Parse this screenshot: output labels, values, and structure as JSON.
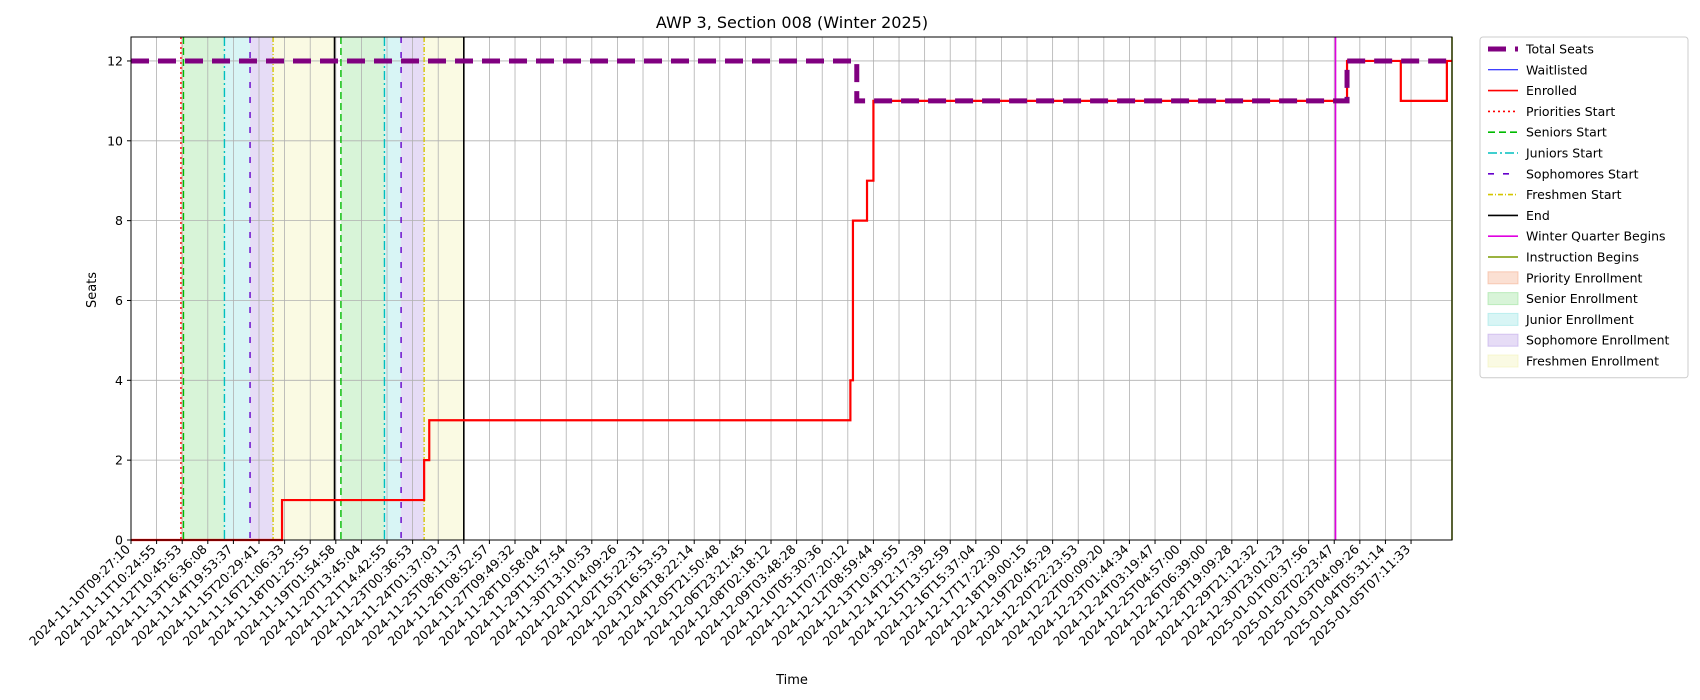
{
  "chart_data": {
    "type": "line",
    "title": "AWP 3, Section 008 (Winter 2025)",
    "xlabel": "Time",
    "ylabel": "Seats",
    "ylim": [
      0,
      12.6
    ],
    "yticks": [
      0,
      2,
      4,
      6,
      8,
      10,
      12
    ],
    "grid": true,
    "legend_position": "outside-right",
    "x_ticks": [
      "2024-11-10T09:27:10",
      "2024-11-11T10:24:55",
      "2024-11-12T10:45:53",
      "2024-11-13T16:36:08",
      "2024-11-14T19:53:37",
      "2024-11-15T20:29:41",
      "2024-11-16T21:06:33",
      "2024-11-18T01:25:55",
      "2024-11-19T01:54:58",
      "2024-11-20T13:45:04",
      "2024-11-21T14:42:55",
      "2024-11-23T00:36:53",
      "2024-11-24T01:37:03",
      "2024-11-25T08:11:37",
      "2024-11-26T08:52:57",
      "2024-11-27T09:49:32",
      "2024-11-28T10:58:04",
      "2024-11-29T11:57:54",
      "2024-11-30T13:10:53",
      "2024-12-01T14:09:26",
      "2024-12-02T15:22:31",
      "2024-12-03T16:53:53",
      "2024-12-04T18:22:14",
      "2024-12-05T21:50:48",
      "2024-12-06T23:21:45",
      "2024-12-08T02:18:12",
      "2024-12-09T03:48:28",
      "2024-12-10T05:30:36",
      "2024-12-11T07:20:12",
      "2024-12-12T08:59:44",
      "2024-12-13T10:39:55",
      "2024-12-14T12:17:39",
      "2024-12-15T13:52:59",
      "2024-12-16T15:37:04",
      "2024-12-17T17:22:30",
      "2024-12-18T19:00:15",
      "2024-12-19T20:45:29",
      "2024-12-20T22:23:53",
      "2024-12-22T00:09:20",
      "2024-12-23T01:44:34",
      "2024-12-24T03:19:47",
      "2024-12-25T04:57:00",
      "2024-12-26T06:39:00",
      "2024-12-28T19:09:28",
      "2024-12-29T21:12:32",
      "2024-12-30T23:01:23",
      "2025-01-01T00:37:56",
      "2025-01-02T02:23:47",
      "2025-01-03T04:09:26",
      "2025-01-04T05:31:14",
      "2025-01-05T07:11:33"
    ],
    "x_max_index": 51.6,
    "series": [
      {
        "name": "Total Seats",
        "color": "#800080",
        "style": "dashed-thick",
        "points": [
          [
            0,
            12
          ],
          [
            28.35,
            12
          ],
          [
            28.35,
            11
          ],
          [
            47.5,
            11
          ],
          [
            47.5,
            12
          ],
          [
            51.6,
            12
          ]
        ]
      },
      {
        "name": "Waitlisted",
        "color": "#0000ff",
        "style": "solid-thin",
        "points": [
          [
            0,
            0
          ],
          [
            51.6,
            0
          ]
        ]
      },
      {
        "name": "Enrolled",
        "color": "#ff0000",
        "style": "solid",
        "points": [
          [
            0,
            0
          ],
          [
            5.9,
            0
          ],
          [
            5.9,
            1
          ],
          [
            11.45,
            1
          ],
          [
            11.45,
            2
          ],
          [
            11.65,
            2
          ],
          [
            11.65,
            3
          ],
          [
            28.1,
            3
          ],
          [
            28.1,
            4
          ],
          [
            28.2,
            4
          ],
          [
            28.2,
            8
          ],
          [
            28.75,
            8
          ],
          [
            28.75,
            9
          ],
          [
            29.0,
            9
          ],
          [
            29.0,
            11
          ],
          [
            47.5,
            11
          ],
          [
            47.5,
            12
          ],
          [
            49.6,
            12
          ],
          [
            49.6,
            11
          ],
          [
            51.4,
            11
          ],
          [
            51.4,
            12
          ],
          [
            51.6,
            12
          ]
        ]
      }
    ],
    "vertical_markers": [
      {
        "name": "Priorities Start",
        "color": "#ff0000",
        "style": "dotted",
        "x": 1.95
      },
      {
        "name": "Seniors Start",
        "color": "#00bb00",
        "style": "dashed",
        "x": [
          2.05,
          8.2
        ]
      },
      {
        "name": "Juniors Start",
        "color": "#00bfbf",
        "style": "dashdot",
        "x": [
          3.65,
          9.9
        ]
      },
      {
        "name": "Sophomores Start",
        "color": "#6600cc",
        "style": "sparse-dashed",
        "x": [
          4.65,
          10.55
        ]
      },
      {
        "name": "Freshmen Start",
        "color": "#d4c600",
        "style": "dashdot-fine",
        "x": [
          5.55,
          11.45
        ]
      },
      {
        "name": "End",
        "color": "#000000",
        "style": "solid",
        "x": [
          7.95,
          13.0
        ]
      },
      {
        "name": "Winter Quarter Begins",
        "color": "#e000e0",
        "style": "solid",
        "x": 47.05
      },
      {
        "name": "Instruction Begins",
        "color": "#7a9a00",
        "style": "solid",
        "x": 51.6
      }
    ],
    "shaded_regions": [
      {
        "name": "Priority Enrollment",
        "color": "#f4a582",
        "spans": [
          [
            1.95,
            2.05
          ]
        ]
      },
      {
        "name": "Senior Enrollment",
        "color": "#8fe08f",
        "spans": [
          [
            2.05,
            3.65
          ],
          [
            8.2,
            9.9
          ]
        ]
      },
      {
        "name": "Junior Enrollment",
        "color": "#8fe3e3",
        "spans": [
          [
            3.65,
            4.65
          ],
          [
            9.9,
            10.55
          ]
        ]
      },
      {
        "name": "Sophomore Enrollment",
        "color": "#b69ae6",
        "spans": [
          [
            4.65,
            5.55
          ],
          [
            10.55,
            11.45
          ]
        ]
      },
      {
        "name": "Freshmen Enrollment",
        "color": "#f0f0b0",
        "spans": [
          [
            5.55,
            7.95
          ],
          [
            11.45,
            13.0
          ]
        ]
      }
    ],
    "legend": [
      {
        "label": "Total Seats",
        "kind": "line",
        "color": "#800080",
        "style": "dashed-thick"
      },
      {
        "label": "Waitlisted",
        "kind": "line",
        "color": "#0000ff",
        "style": "solid-thin"
      },
      {
        "label": "Enrolled",
        "kind": "line",
        "color": "#ff0000",
        "style": "solid"
      },
      {
        "label": "Priorities Start",
        "kind": "line",
        "color": "#ff0000",
        "style": "dotted"
      },
      {
        "label": "Seniors Start",
        "kind": "line",
        "color": "#00bb00",
        "style": "dashed"
      },
      {
        "label": "Juniors Start",
        "kind": "line",
        "color": "#00bfbf",
        "style": "dashdot"
      },
      {
        "label": "Sophomores Start",
        "kind": "line",
        "color": "#6600cc",
        "style": "sparse-dashed"
      },
      {
        "label": "Freshmen Start",
        "kind": "line",
        "color": "#d4c600",
        "style": "dashdot-fine"
      },
      {
        "label": "End",
        "kind": "line",
        "color": "#000000",
        "style": "solid"
      },
      {
        "label": "Winter Quarter Begins",
        "kind": "line",
        "color": "#e000e0",
        "style": "solid"
      },
      {
        "label": "Instruction Begins",
        "kind": "line",
        "color": "#7a9a00",
        "style": "solid"
      },
      {
        "label": "Priority Enrollment",
        "kind": "patch",
        "color": "#f4a582"
      },
      {
        "label": "Senior Enrollment",
        "kind": "patch",
        "color": "#8fe08f"
      },
      {
        "label": "Junior Enrollment",
        "kind": "patch",
        "color": "#8fe3e3"
      },
      {
        "label": "Sophomore Enrollment",
        "kind": "patch",
        "color": "#b69ae6"
      },
      {
        "label": "Freshmen Enrollment",
        "kind": "patch",
        "color": "#f0f0b0"
      }
    ]
  }
}
